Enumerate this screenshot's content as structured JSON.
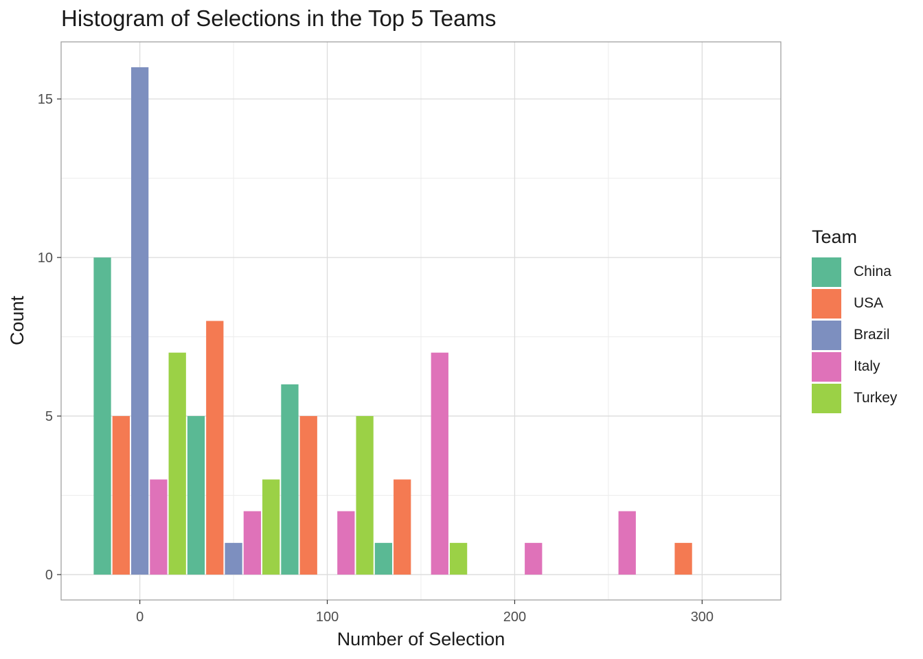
{
  "chart_data": {
    "type": "bar",
    "title": "Histogram of Selections in the Top 5 Teams",
    "xlabel": "Number of Selection",
    "ylabel": "Count",
    "xlim": [
      -42,
      342
    ],
    "ylim": [
      -0.8,
      16.8
    ],
    "x_ticks": [
      0,
      100,
      200,
      300
    ],
    "y_ticks": [
      0,
      5,
      10,
      15
    ],
    "grid": true,
    "legend_title": "Team",
    "legend_position": "right",
    "bin_width": 50,
    "bin_centers": [
      0,
      50,
      100,
      150,
      200,
      250,
      300
    ],
    "series": [
      {
        "name": "China",
        "color": "#5ab994",
        "values": [
          10,
          5,
          6,
          1,
          0,
          0,
          0
        ]
      },
      {
        "name": "USA",
        "color": "#f47a52",
        "values": [
          5,
          8,
          5,
          3,
          0,
          0,
          1
        ]
      },
      {
        "name": "Brazil",
        "color": "#7d8fbf",
        "values": [
          16,
          1,
          0,
          0,
          0,
          0,
          0
        ]
      },
      {
        "name": "Italy",
        "color": "#df72b9",
        "values": [
          3,
          2,
          2,
          7,
          1,
          2,
          0
        ]
      },
      {
        "name": "Turkey",
        "color": "#9bd146",
        "values": [
          7,
          3,
          5,
          1,
          0,
          0,
          0
        ]
      }
    ]
  }
}
